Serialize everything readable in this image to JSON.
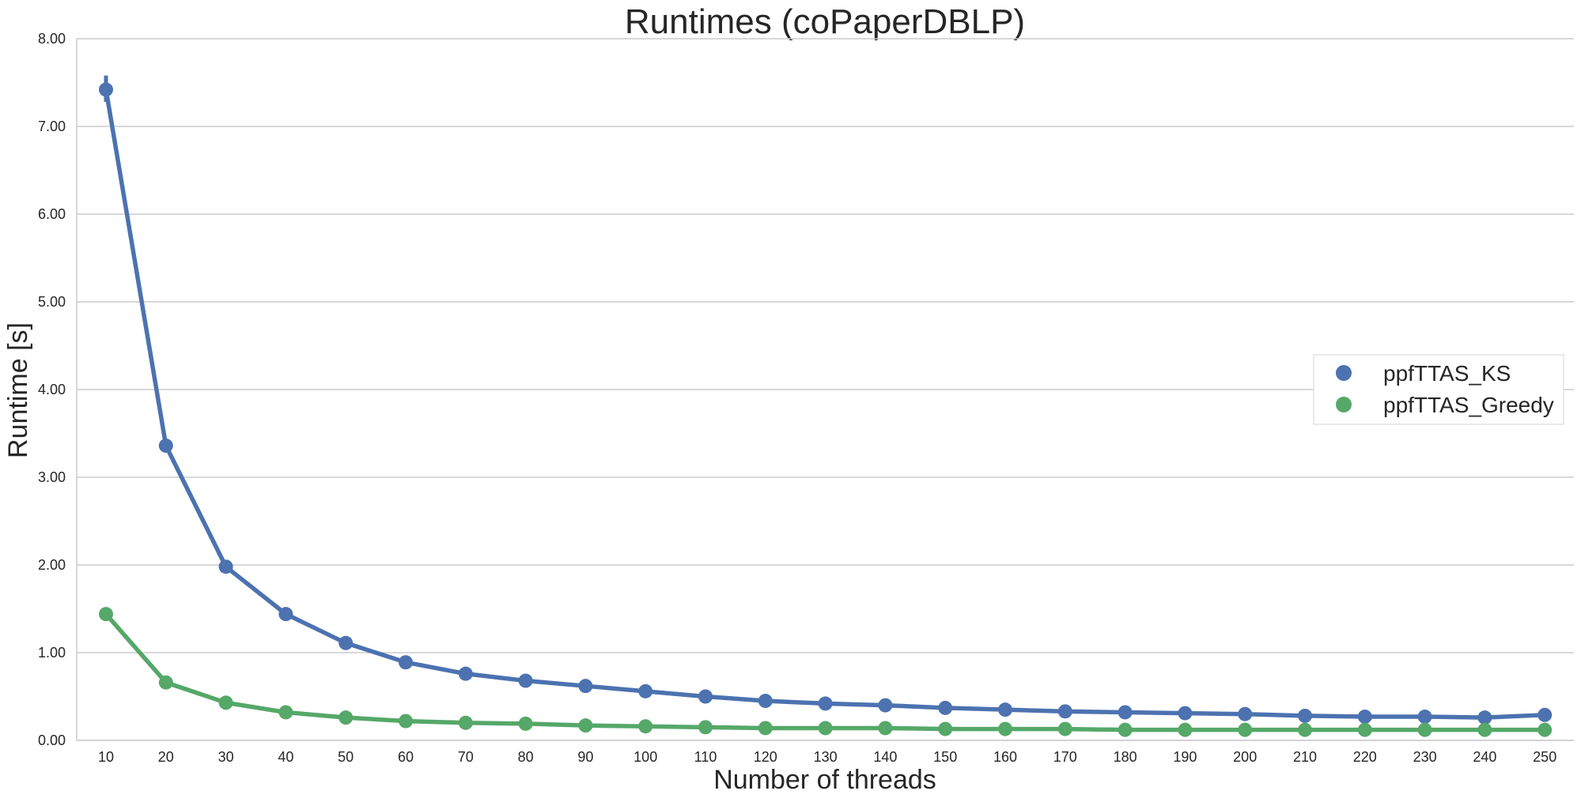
{
  "chart_data": {
    "type": "line",
    "title": "Runtimes (coPaperDBLP)",
    "xlabel": "Number of threads",
    "ylabel": "Runtime [s]",
    "ylim": [
      0,
      8
    ],
    "yticks": [
      "0.00",
      "1.00",
      "2.00",
      "3.00",
      "4.00",
      "5.00",
      "6.00",
      "7.00",
      "8.00"
    ],
    "categories": [
      "10",
      "20",
      "30",
      "40",
      "50",
      "60",
      "70",
      "80",
      "90",
      "100",
      "110",
      "120",
      "130",
      "140",
      "150",
      "160",
      "170",
      "180",
      "190",
      "200",
      "210",
      "220",
      "230",
      "240",
      "250"
    ],
    "grid": "horizontal",
    "legend_position": "center-right",
    "series": [
      {
        "name": "ppfTTAS_KS",
        "color": "#4c72b0",
        "values": [
          7.42,
          3.36,
          1.98,
          1.44,
          1.11,
          0.89,
          0.76,
          0.68,
          0.62,
          0.56,
          0.5,
          0.45,
          0.42,
          0.4,
          0.37,
          0.35,
          0.33,
          0.32,
          0.31,
          0.3,
          0.28,
          0.27,
          0.27,
          0.26,
          0.29
        ],
        "error": {
          "index": 0,
          "low": 7.28,
          "high": 7.58
        }
      },
      {
        "name": "ppfTTAS_Greedy",
        "color": "#55a868",
        "values": [
          1.44,
          0.66,
          0.43,
          0.32,
          0.26,
          0.22,
          0.2,
          0.19,
          0.17,
          0.16,
          0.15,
          0.14,
          0.14,
          0.14,
          0.13,
          0.13,
          0.13,
          0.12,
          0.12,
          0.12,
          0.12,
          0.12,
          0.12,
          0.12,
          0.12
        ]
      }
    ]
  }
}
